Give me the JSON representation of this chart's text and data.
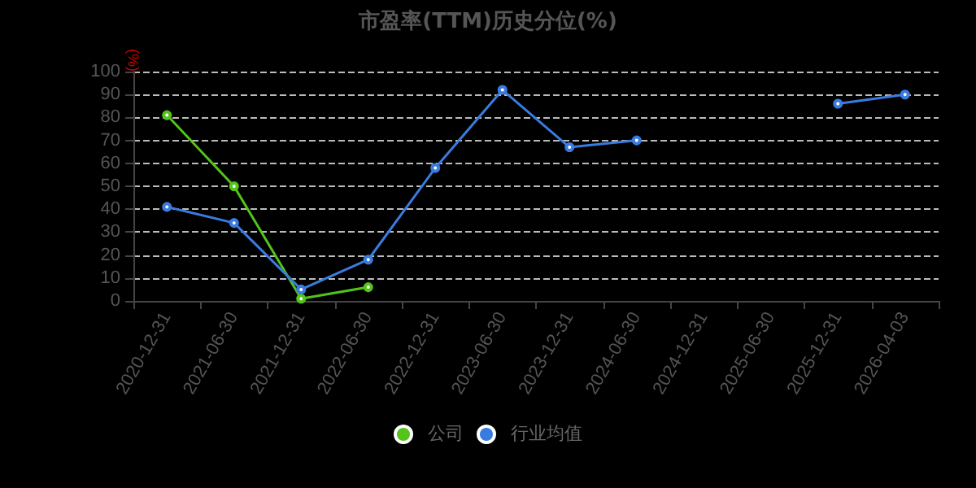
{
  "chart_data": {
    "type": "line",
    "title": "市盈率(TTM)历史分位(%)",
    "ylabel": "(%)",
    "categories": [
      "2020-12-31",
      "2021-06-30",
      "2021-12-31",
      "2022-06-30",
      "2022-12-31",
      "2023-06-30",
      "2023-12-31",
      "2024-06-30",
      "2024-12-31",
      "2025-06-30",
      "2025-12-31",
      "2026-04-03"
    ],
    "series": [
      {
        "name": "公司",
        "color": "#52c41a",
        "values": [
          81,
          50,
          1,
          6,
          null,
          null,
          null,
          null,
          null,
          null,
          null,
          null
        ]
      },
      {
        "name": "行业均值",
        "color": "#3a7be0",
        "values": [
          41,
          34,
          5,
          18,
          58,
          92,
          67,
          70,
          null,
          null,
          86,
          90
        ]
      }
    ],
    "ylim": [
      0,
      100
    ],
    "yticks": [
      0,
      10,
      20,
      30,
      40,
      50,
      60,
      70,
      80,
      90,
      100
    ],
    "grid": "y",
    "legend": "bottom",
    "marker": "circle",
    "line_style": "solid"
  }
}
